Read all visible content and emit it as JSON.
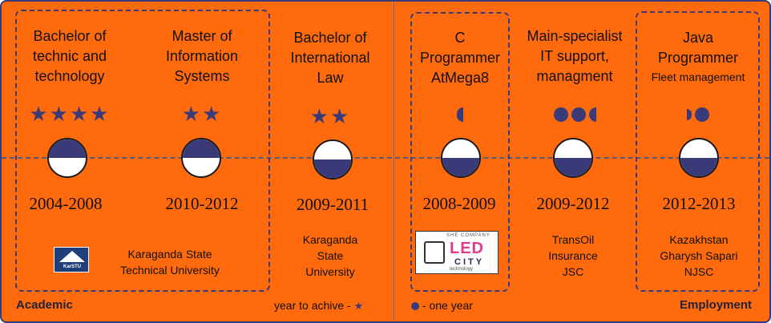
{
  "academic": {
    "section_label": "Academic",
    "legend_text": "year to achive - ",
    "legend_icon": "star-icon",
    "entries": [
      {
        "title": [
          "Bachelor of",
          "technic and",
          "technology"
        ],
        "rating": 4,
        "years": "2004-2008",
        "org": [
          "Karaganda  State",
          "Technical  University"
        ],
        "logo": "ktu-logo"
      },
      {
        "title": [
          "Master of",
          "Information",
          "Systems"
        ],
        "rating": 2,
        "years": "2010-2012"
      },
      {
        "title": [
          "Bachelor of",
          "International",
          "Law"
        ],
        "rating": 2,
        "years": "2009-2011",
        "org": [
          "Karaganda",
          "State",
          "University"
        ]
      }
    ]
  },
  "employment": {
    "section_label": "Employment",
    "legend_text": " - one year",
    "legend_icon": "dot-icon",
    "entries": [
      {
        "title": [
          "C",
          "Programmer",
          "AtMega8"
        ],
        "subtitle": "",
        "duration_years": 0.5,
        "years": "2008-2009",
        "logo": "ledcity-logo",
        "logo_text": {
          "top": "SHE COMPANY",
          "big": "LED",
          "city": "CITY",
          "bottom": "technology"
        }
      },
      {
        "title": [
          "Main-specialist",
          "IT support,",
          "managment"
        ],
        "duration_years": 2.5,
        "years": "2009-2012",
        "org": [
          "TransOil",
          "Insurance",
          "JSC"
        ]
      },
      {
        "title": [
          "Java",
          "Programmer"
        ],
        "subtitle": "Fleet management",
        "duration_years": 1.5,
        "years": "2012-2013",
        "org": [
          "Kazakhstan",
          "Gharysh Sapari",
          "NJSC"
        ]
      }
    ]
  },
  "colors": {
    "background": "#ff6a0d",
    "accent": "#3b3a78",
    "border": "#3b3a78"
  }
}
